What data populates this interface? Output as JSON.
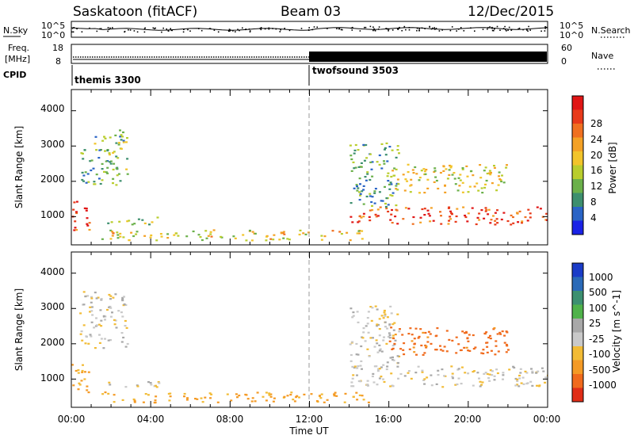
{
  "header": {
    "station": "Saskatoon (fitACF)",
    "beam": "Beam 03",
    "date": "12/Dec/2015"
  },
  "noise_panel": {
    "left_label": "N.Sky",
    "right_label": "N.Search",
    "left_ticks": [
      "10^5",
      "10^0"
    ],
    "right_ticks": [
      "10^5",
      "10^0"
    ]
  },
  "freq_panel": {
    "left_label_line1": "Freq.",
    "left_label_line2": "[MHz]",
    "right_label": "Nave",
    "left_ticks": [
      "18",
      "8"
    ],
    "right_ticks": [
      "60",
      "0"
    ]
  },
  "cpid": {
    "label": "CPID",
    "segments": [
      {
        "name": "themis 3300",
        "start_hour": 0
      },
      {
        "name": "twofsound 3503",
        "start_hour": 12
      }
    ]
  },
  "axes": {
    "x_label": "Time UT",
    "x_ticks": [
      "00:00",
      "04:00",
      "08:00",
      "12:00",
      "16:00",
      "20:00",
      "00:00"
    ],
    "y_label": "Slant Range [km]",
    "y_ticks": [
      "1000",
      "2000",
      "3000",
      "4000"
    ]
  },
  "chart_data": [
    {
      "type": "heatmap",
      "title": "",
      "xlabel": "Time UT",
      "ylabel": "Slant Range [km]",
      "xlim": [
        0,
        24
      ],
      "ylim": [
        200,
        4600
      ],
      "colorbar": {
        "label": "Power [dB]",
        "ticks": [
          "4",
          "8",
          "12",
          "16",
          "20",
          "24",
          "28"
        ],
        "range": [
          0,
          30
        ],
        "colors": [
          "#1a22e6",
          "#2a64c6",
          "#3d8f6e",
          "#6bb04a",
          "#b9cd2d",
          "#f2c42a",
          "#f4a125",
          "#f07020",
          "#e83a1a",
          "#e01515"
        ]
      },
      "echo_regions": [
        {
          "t": [
            0.0,
            0.9
          ],
          "r": [
            600,
            1500
          ],
          "value": 26
        },
        {
          "t": [
            0.4,
            2.8
          ],
          "r": [
            1900,
            3500
          ],
          "value": 10
        },
        {
          "t": [
            1.5,
            4.5
          ],
          "r": [
            800,
            1000
          ],
          "value": 11
        },
        {
          "t": [
            1.5,
            15.0
          ],
          "r": [
            350,
            650
          ],
          "value": 16
        },
        {
          "t": [
            14.0,
            24.0
          ],
          "r": [
            800,
            1300
          ],
          "value": 24
        },
        {
          "t": [
            14.0,
            16.5
          ],
          "r": [
            1300,
            3100
          ],
          "value": 9
        },
        {
          "t": [
            16.0,
            22.0
          ],
          "r": [
            1700,
            2500
          ],
          "value": 15
        }
      ]
    },
    {
      "type": "heatmap",
      "title": "",
      "xlabel": "Time UT",
      "ylabel": "Slant Range [km]",
      "xlim": [
        0,
        24
      ],
      "ylim": [
        200,
        4600
      ],
      "colorbar": {
        "label": "Velocity [m s^-1]",
        "ticks": [
          "1000",
          "500",
          "100",
          "25",
          "-25",
          "-100",
          "-500",
          "-1000"
        ],
        "colors": [
          "#1a3cc8",
          "#2a6ab8",
          "#3c9070",
          "#4fb24a",
          "#a8a8a8",
          "#c9c9c9",
          "#f2bb35",
          "#f49a25",
          "#f06a1c",
          "#e02d16"
        ]
      },
      "echo_regions": [
        {
          "t": [
            0.0,
            0.9
          ],
          "r": [
            600,
            1500
          ],
          "value": -120
        },
        {
          "t": [
            0.4,
            2.8
          ],
          "r": [
            1900,
            3500
          ],
          "value": 0
        },
        {
          "t": [
            1.5,
            4.5
          ],
          "r": [
            800,
            1000
          ],
          "value": 0
        },
        {
          "t": [
            1.5,
            15.0
          ],
          "r": [
            350,
            650
          ],
          "value": -110
        },
        {
          "t": [
            14.0,
            24.0
          ],
          "r": [
            800,
            1400
          ],
          "value": 0
        },
        {
          "t": [
            14.0,
            16.5
          ],
          "r": [
            1300,
            3100
          ],
          "value": 0
        },
        {
          "t": [
            16.0,
            22.0
          ],
          "r": [
            1700,
            2500
          ],
          "value": -300
        }
      ]
    }
  ]
}
